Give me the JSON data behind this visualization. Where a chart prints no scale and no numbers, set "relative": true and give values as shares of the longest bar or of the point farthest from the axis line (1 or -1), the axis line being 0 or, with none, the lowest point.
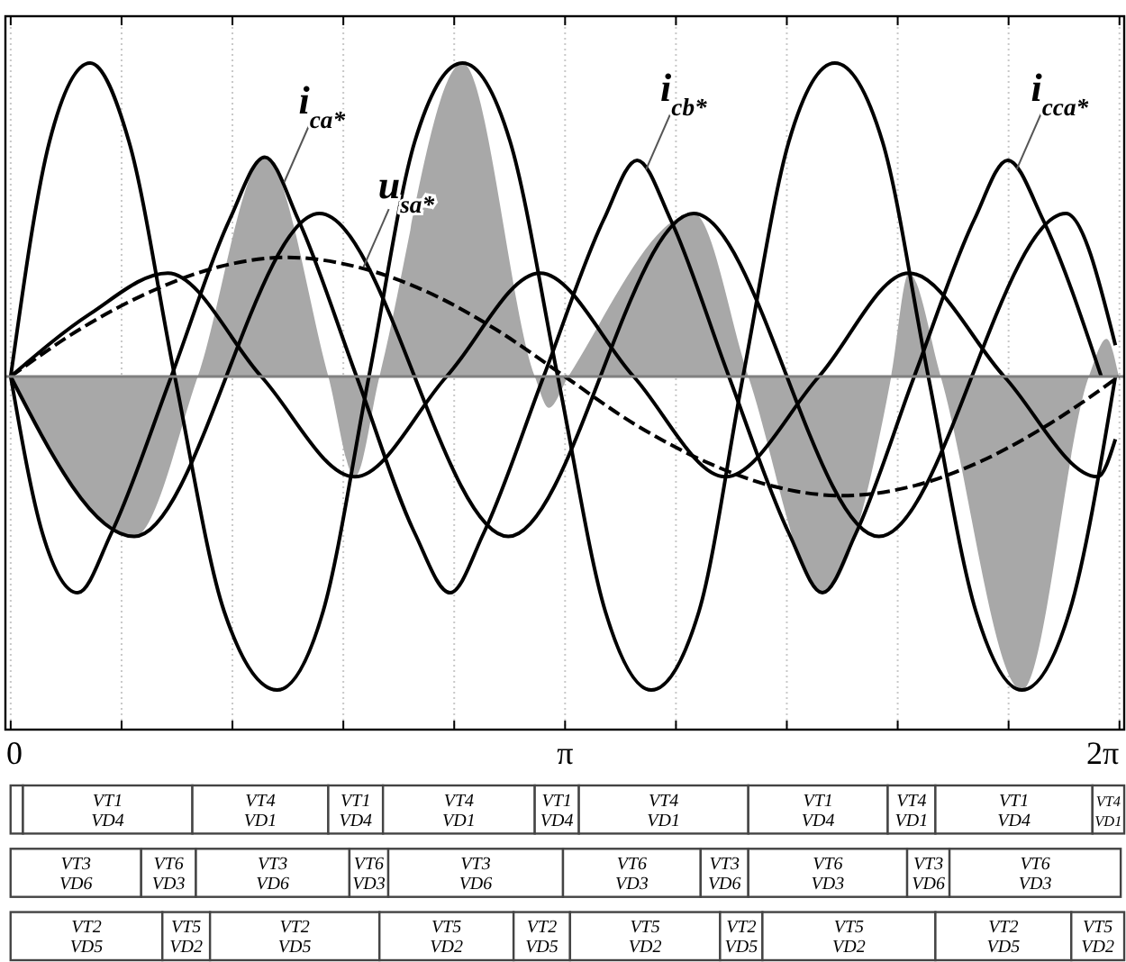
{
  "chart_data": [
    {
      "type": "line",
      "relative": true,
      "xlim": [
        -0.03,
        6.31
      ],
      "xticks": [
        0,
        {
          "value": 0.6283,
          "label": null
        },
        {
          "value": 1.2566,
          "label": null
        },
        {
          "value": 1.885,
          "label": null
        },
        {
          "value": 2.5133,
          "label": null
        },
        {
          "value": 3.1416,
          "label": "π"
        },
        {
          "value": 3.7699,
          "label": null
        },
        {
          "value": 4.3982,
          "label": null
        },
        {
          "value": 5.0265,
          "label": null
        },
        {
          "value": 5.6549,
          "label": null
        },
        {
          "value": 6.2832,
          "label": "2π"
        }
      ],
      "grid": "x",
      "series": [
        {
          "type": "area",
          "color": "#a8a8a8",
          "x": [
            0,
            0.7,
            1.06,
            1.44,
            1.8,
            1.95,
            2.09,
            2.56,
            2.97,
            3.05,
            3.16,
            3.87,
            4.18,
            4.6,
            4.99,
            5.09,
            5.27,
            5.73,
            6.11,
            6.21,
            6.28
          ],
          "values": [
            0,
            -0.51,
            0,
            0.7,
            0,
            -0.32,
            0,
            1,
            0,
            -0.1,
            0,
            0.52,
            0,
            -0.69,
            0,
            0.33,
            0,
            -1,
            0,
            0.12,
            0
          ]
        },
        {
          "color": "#000000",
          "x": [
            0,
            0.22,
            0.45,
            0.67,
            0.93,
            1.21,
            1.51,
            1.77,
            2.03,
            2.29,
            2.56,
            2.83,
            3.1,
            3.37,
            3.63,
            3.9,
            4.15,
            4.41,
            4.67,
            4.94,
            5.2,
            5.47,
            5.73,
            6.0,
            6.26
          ],
          "values": [
            0,
            0.75,
            1,
            0.75,
            0,
            -0.75,
            -1,
            -0.75,
            0,
            0.75,
            1,
            0.75,
            0,
            -0.75,
            -1,
            -0.75,
            0,
            0.75,
            1,
            0.75,
            0,
            -0.75,
            -1,
            -0.75,
            0
          ]
        },
        {
          "color": "#000000",
          "x": [
            0,
            0.18,
            0.38,
            0.57,
            0.91,
            1.24,
            1.44,
            1.63,
            1.96,
            2.29,
            2.49,
            2.68,
            3.02,
            3.36,
            3.55,
            3.74,
            4.07,
            4.41,
            4.6,
            4.79,
            5.12,
            5.46,
            5.65,
            5.85,
            6.18
          ],
          "values": [
            0,
            -0.5,
            -0.69,
            -0.5,
            0,
            0.5,
            0.7,
            0.5,
            0,
            -0.5,
            -0.69,
            -0.5,
            0,
            0.5,
            0.69,
            0.5,
            0,
            -0.5,
            -0.69,
            -0.5,
            0,
            0.5,
            0.69,
            0.5,
            0
          ]
        },
        {
          "color": "#000000",
          "x": [
            0,
            0.7,
            1.75,
            2.82,
            3.87,
            4.92,
            5.98,
            6.26
          ],
          "values": [
            0,
            -0.51,
            0.52,
            -0.51,
            0.52,
            -0.51,
            0.52,
            0.1
          ]
        },
        {
          "color": "#000000",
          "x": [
            0,
            0.45,
            0.89,
            1.42,
            1.95,
            2.47,
            3.0,
            3.53,
            4.05,
            4.58,
            5.09,
            5.63,
            6.16,
            6.26
          ],
          "values": [
            0,
            0.2,
            0.33,
            0,
            -0.32,
            0,
            0.33,
            0,
            -0.32,
            0,
            0.33,
            0,
            -0.32,
            -0.2
          ]
        },
        {
          "color": "#000000",
          "line_style": "dashed",
          "x": [
            0,
            0.39,
            0.79,
            1.18,
            1.57,
            1.96,
            2.36,
            2.75,
            3.14,
            3.53,
            3.93,
            4.32,
            4.71,
            5.11,
            5.5,
            5.89,
            6.28
          ],
          "values": [
            0,
            0.15,
            0.27,
            0.35,
            0.38,
            0.35,
            0.27,
            0.15,
            0,
            -0.15,
            -0.27,
            -0.35,
            -0.38,
            -0.35,
            -0.27,
            -0.15,
            0
          ]
        }
      ],
      "annotations": [
        {
          "text": "i$_{ca*}$",
          "x": 1.55,
          "y": 0.62
        },
        {
          "text": "u$_{sa*}$",
          "x": 2.0,
          "y": 0.35
        },
        {
          "text": "i$_{cb*}$",
          "x": 3.6,
          "y": 0.66
        },
        {
          "text": "i$_{cca*}$",
          "x": 5.7,
          "y": 0.66
        }
      ]
    },
    {
      "type": "bar",
      "orientation": "horizontal",
      "stacked": true,
      "xlim": [
        -0.06,
        6.32
      ],
      "categories": [
        null,
        null,
        null
      ],
      "series": [
        {
          "color": "#ffffff",
          "values": [
            0.07,
            0.74,
            0.86
          ],
          "value_labels": [
            null,
            "VT3 VD6",
            "VT2 VD5"
          ]
        },
        {
          "color": "#ffffff",
          "values": [
            0.96,
            0.31,
            0.27
          ],
          "value_labels": [
            "VT1 VD4",
            "VT6 VD3",
            "VT5 VD2"
          ]
        },
        {
          "color": "#ffffff",
          "values": [
            0.77,
            0.87,
            0.96
          ],
          "value_labels": [
            "VT4 VD1",
            "VT3 VD6",
            "VT2 VD5"
          ]
        },
        {
          "color": "#ffffff",
          "values": [
            0.31,
            0.22,
            0.76
          ],
          "value_labels": [
            "VT1 VD4",
            "VT6 VD3",
            "VT5 VD2"
          ]
        },
        {
          "color": "#ffffff",
          "values": [
            0.86,
            0.99,
            0.32
          ],
          "value_labels": [
            "VT4 VD1",
            "VT3 VD6",
            "VT2 VD5"
          ]
        },
        {
          "color": "#ffffff",
          "values": [
            0.25,
            0.78,
            0.85
          ],
          "value_labels": [
            "VT1 VD4",
            "VT6 VD3",
            "VT5 VD2"
          ]
        },
        {
          "color": "#ffffff",
          "values": [
            0.96,
            0.27,
            0.24
          ],
          "value_labels": [
            "VT4 VD1",
            "VT3 VD6",
            "VT2 VD5"
          ]
        },
        {
          "color": "#ffffff",
          "values": [
            0.79,
            0.9,
            0.98
          ],
          "value_labels": [
            "VT1 VD4",
            "VT6 VD3",
            "VT5 VD2"
          ]
        },
        {
          "color": "#ffffff",
          "values": [
            0.27,
            0.24,
            0.77
          ],
          "value_labels": [
            "VT4 VD1",
            "VT3 VD6",
            "VT2 VD5"
          ]
        },
        {
          "color": "#ffffff",
          "values": [
            0.89,
            0.97,
            0.3
          ],
          "value_labels": [
            "VT1 VD4",
            "VT6 VD3",
            "VT5 VD2"
          ]
        },
        {
          "color": "#ffffff",
          "values": [
            0.18,
            null,
            null
          ],
          "value_labels": [
            "VT4 VD1",
            null,
            null
          ]
        }
      ]
    }
  ]
}
